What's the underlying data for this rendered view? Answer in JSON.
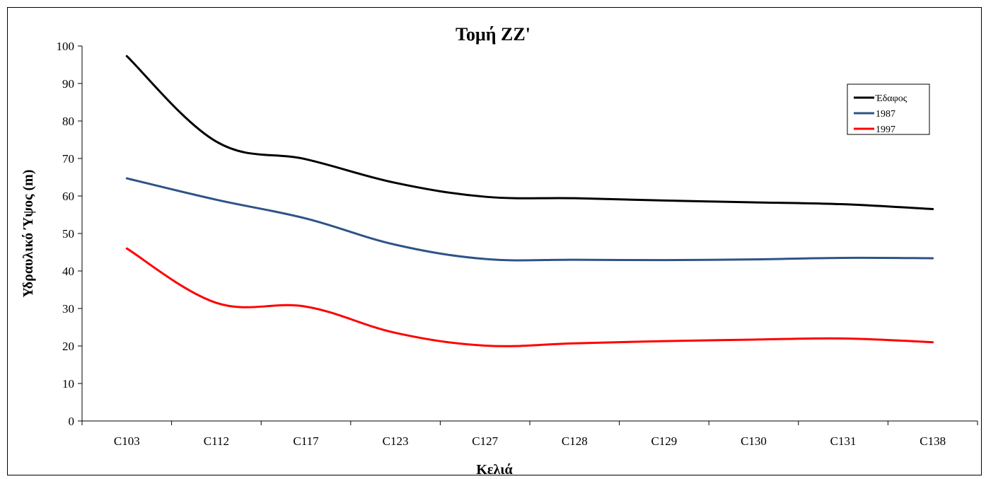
{
  "chart_data": {
    "type": "line",
    "title": "Τομή ΖΖ'",
    "xlabel": "Κελιά",
    "ylabel": "Υδραυλικό Ύψος (m)",
    "categories": [
      "C103",
      "C112",
      "C117",
      "C123",
      "C127",
      "C128",
      "C129",
      "C130",
      "C131",
      "C138"
    ],
    "yticks": [
      "0",
      "10",
      "20",
      "30",
      "40",
      "50",
      "60",
      "70",
      "80",
      "90",
      "100"
    ],
    "ylim": [
      0,
      100
    ],
    "grid": false,
    "legend_position": "top-right",
    "series": [
      {
        "name": "Έδαφος",
        "color": "#000000",
        "values": [
          97.3,
          74.5,
          69.8,
          63.5,
          59.8,
          59.4,
          58.8,
          58.3,
          57.8,
          56.5
        ]
      },
      {
        "name": "1987",
        "color": "#2f5387",
        "values": [
          64.7,
          59.0,
          54.0,
          47.0,
          43.2,
          43.0,
          42.9,
          43.1,
          43.5,
          43.4
        ]
      },
      {
        "name": "1997",
        "color": "#ff0000",
        "values": [
          46.0,
          31.5,
          30.5,
          23.5,
          20.1,
          20.7,
          21.3,
          21.7,
          22.0,
          21.0
        ]
      }
    ]
  }
}
